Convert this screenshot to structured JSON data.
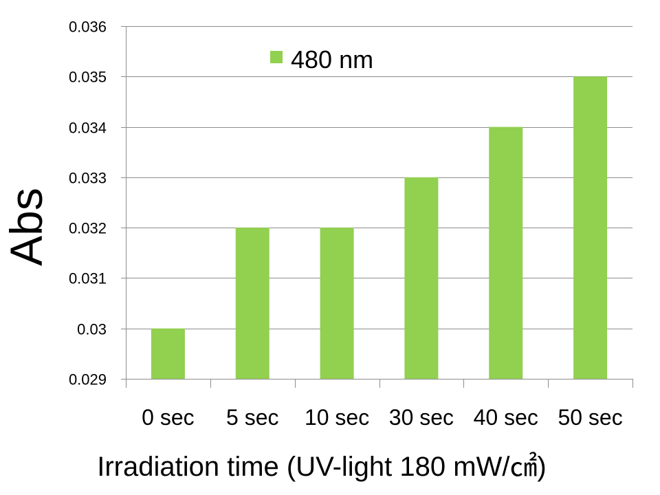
{
  "chart_data": {
    "type": "bar",
    "categories": [
      "0 sec",
      "5 sec",
      "10 sec",
      "30 sec",
      "40 sec",
      "50 sec"
    ],
    "series": [
      {
        "name": "480 nm",
        "values": [
          0.03,
          0.032,
          0.032,
          0.033,
          0.034,
          0.035
        ],
        "color": "#92d050"
      }
    ],
    "title": "",
    "xlabel": "Irradiation time (UV-light 180 mW/㎠)",
    "ylabel": "Abs",
    "ylim": [
      0.029,
      0.036
    ],
    "yticks": [
      0.029,
      0.03,
      0.031,
      0.032,
      0.033,
      0.034,
      0.035,
      0.036
    ],
    "ytick_labels": [
      "0.029",
      "0.03",
      "0.031",
      "0.032",
      "0.033",
      "0.034",
      "0.035",
      "0.036"
    ],
    "grid": true,
    "legend": "top-center"
  }
}
